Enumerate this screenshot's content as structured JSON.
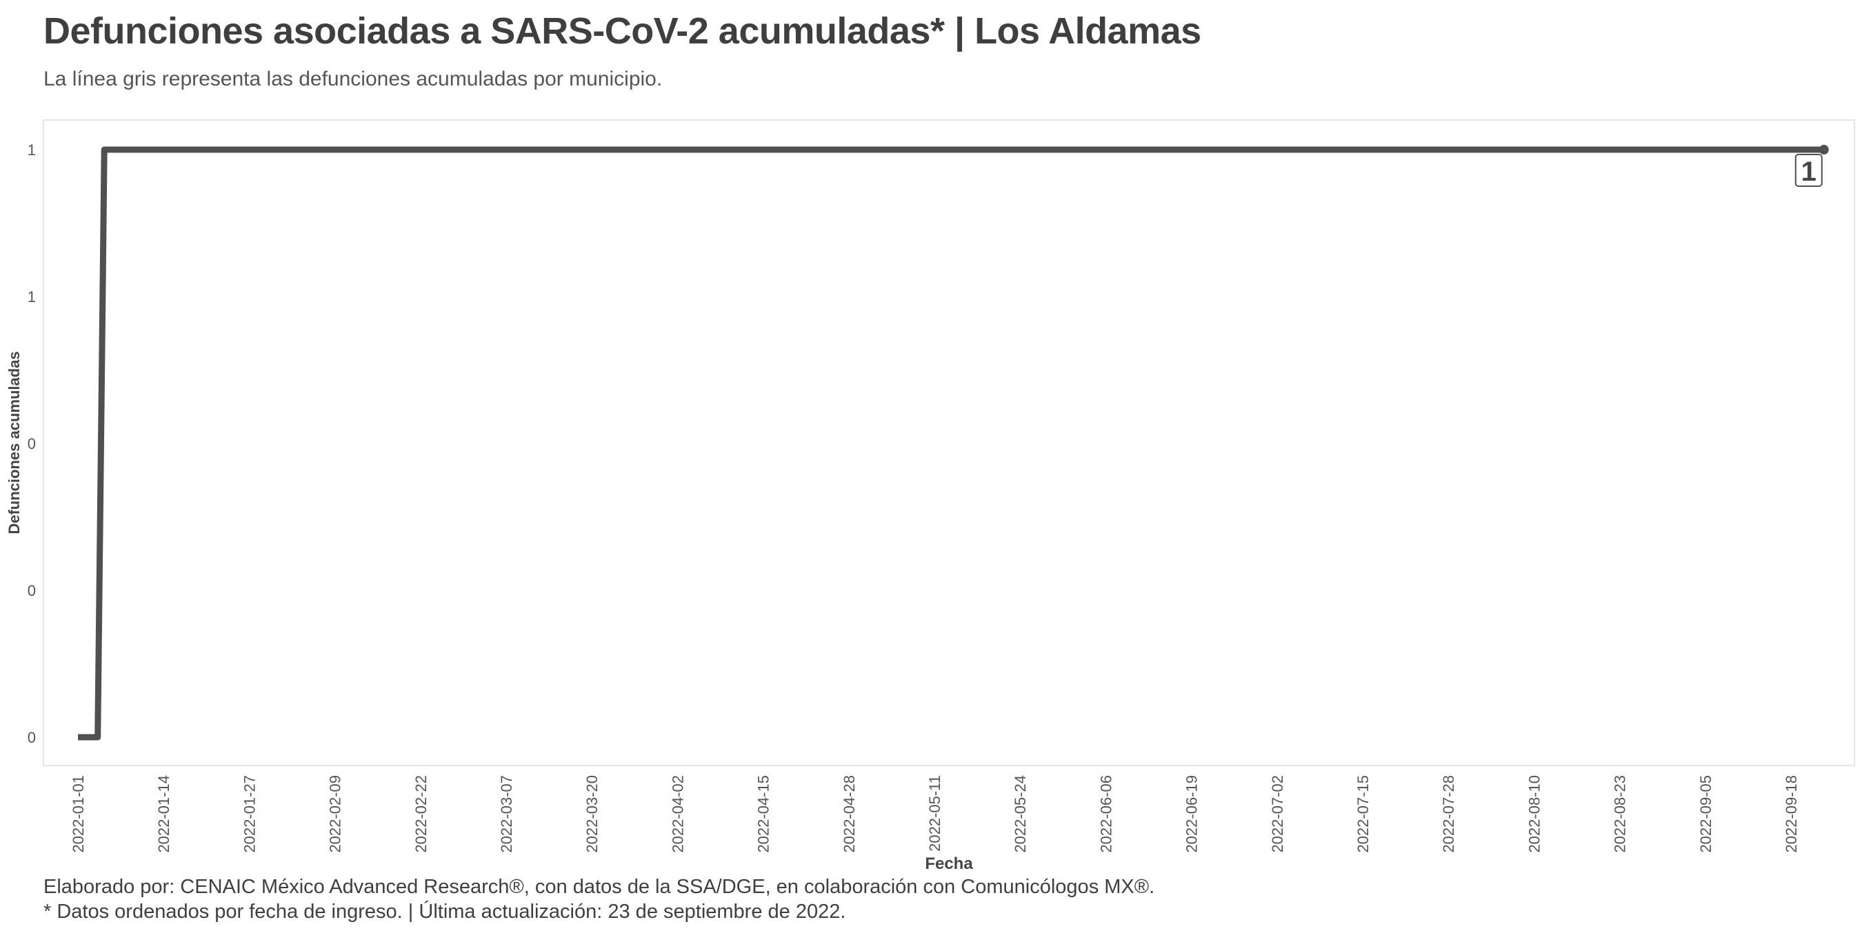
{
  "title": "Defunciones asociadas a SARS-CoV-2 acumuladas* | Los Aldamas",
  "subtitle": "La línea gris representa las defunciones acumuladas por municipio.",
  "caption": [
    "Elaborado por: CENAIC México Advanced Research®, con datos de la SSA/DGE, en colaboración con Comunicólogos MX®.",
    "* Datos ordenados por fecha de ingreso. | Última actualización: 23 de septiembre de 2022."
  ],
  "chart_data": {
    "type": "line",
    "xlabel": "Fecha",
    "ylabel": "Defunciones acumuladas",
    "x_start": "2022-01-01",
    "x_end": "2022-09-23",
    "x_ticks": [
      "2022-01-01",
      "2022-01-14",
      "2022-01-27",
      "2022-02-09",
      "2022-02-22",
      "2022-03-07",
      "2022-03-20",
      "2022-04-02",
      "2022-04-15",
      "2022-04-28",
      "2022-05-11",
      "2022-05-24",
      "2022-06-06",
      "2022-06-19",
      "2022-07-02",
      "2022-07-15",
      "2022-07-28",
      "2022-08-10",
      "2022-08-23",
      "2022-09-05",
      "2022-09-18"
    ],
    "y_ticks": [
      0,
      0.25,
      0.5,
      0.75,
      1
    ],
    "y_tick_labels": [
      "0",
      "0",
      "0",
      "1",
      "1"
    ],
    "ylim": [
      0,
      1
    ],
    "grid": false,
    "series": [
      {
        "color": "#505050",
        "points": [
          {
            "x": "2022-01-01",
            "y": 0
          },
          {
            "x": "2022-01-04",
            "y": 0
          },
          {
            "x": "2022-01-05",
            "y": 1
          },
          {
            "x": "2022-09-23",
            "y": 1
          }
        ]
      }
    ],
    "end_label": {
      "x": "2022-09-23",
      "y": 1,
      "text": "1"
    }
  }
}
